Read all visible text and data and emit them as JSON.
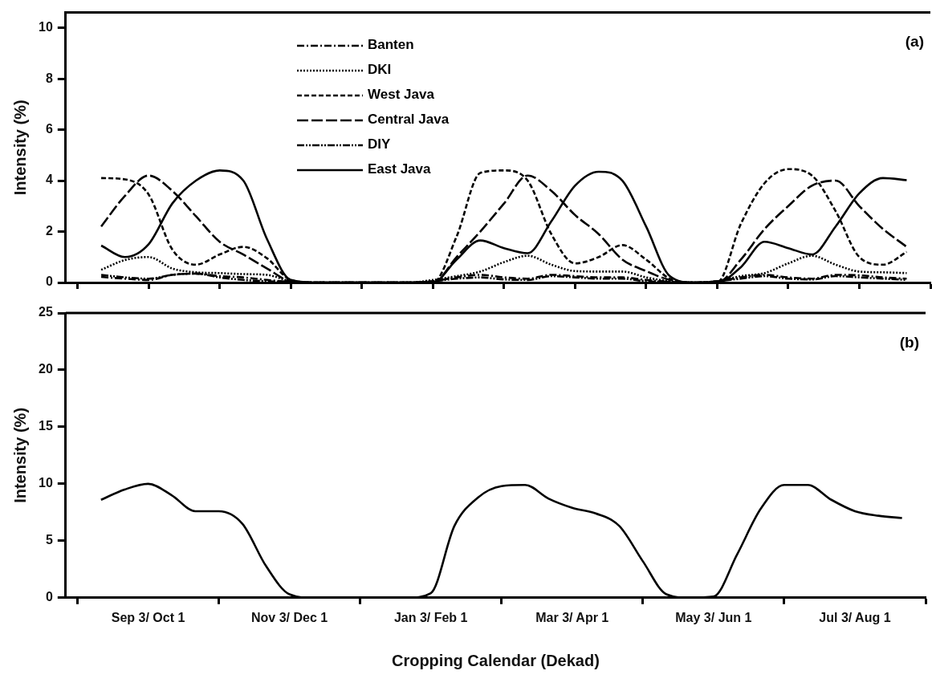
{
  "chart_data": [
    {
      "type": "line",
      "ylabel": "Intensity (%)",
      "annotations": [
        "(a)"
      ],
      "categories": [
        null,
        null,
        null,
        null,
        null,
        null,
        null,
        null,
        null,
        null,
        null,
        null,
        null,
        null,
        null,
        null,
        null,
        null,
        null,
        null,
        null,
        null,
        null,
        null,
        null,
        null,
        null,
        null,
        null,
        null,
        null,
        null,
        null,
        null,
        null,
        null,
        null
      ],
      "ylim": [
        0,
        10.6
      ],
      "yticks": [
        0,
        2,
        4,
        6,
        8,
        10
      ],
      "tick_labels": "y",
      "grid": false,
      "legend": "top",
      "marker": "none",
      "series": [
        {
          "name": "Banten",
          "color": "#000000",
          "line_style": "dashdot",
          "values": [
            null,
            0.22,
            0.15,
            0.1,
            0.3,
            0.35,
            0.25,
            0.2,
            0.1,
            0.02,
            0,
            0,
            0,
            0,
            0,
            0.05,
            0.2,
            0.3,
            0.2,
            0.15,
            0.3,
            0.25,
            0.2,
            0.2,
            0.1,
            0.03,
            0,
            0.05,
            0.2,
            0.3,
            0.2,
            0.15,
            0.3,
            0.28,
            0.2,
            0.15,
            null
          ]
        },
        {
          "name": "DKI",
          "color": "#000000",
          "line_style": "dotted",
          "values": [
            null,
            0.5,
            0.88,
            1.0,
            0.55,
            0.4,
            0.37,
            0.33,
            0.3,
            0.05,
            0,
            0,
            0,
            0,
            0,
            0.1,
            0.25,
            0.43,
            0.8,
            1.05,
            0.7,
            0.45,
            0.43,
            0.43,
            0.2,
            0.05,
            0,
            0.05,
            0.25,
            0.37,
            0.75,
            1.05,
            0.7,
            0.43,
            0.4,
            0.37,
            null
          ]
        },
        {
          "name": "West Java",
          "color": "#000000",
          "line_style": "dashed",
          "values": [
            null,
            4.1,
            4.05,
            3.46,
            1.3,
            0.7,
            1.1,
            1.4,
            0.95,
            0.1,
            0,
            0,
            0,
            0,
            0,
            0,
            1.8,
            4.3,
            4.4,
            4.0,
            1.9,
            0.75,
            1.0,
            1.47,
            0.9,
            0.15,
            0,
            0,
            2.3,
            3.9,
            4.45,
            4.2,
            2.8,
            1.0,
            0.7,
            1.2,
            null
          ]
        },
        {
          "name": "Central Java",
          "color": "#000000",
          "line_style": "longdash",
          "values": [
            null,
            2.2,
            3.4,
            4.2,
            3.6,
            2.6,
            1.6,
            1.1,
            0.55,
            0.05,
            0,
            0,
            0,
            0,
            0,
            0,
            1.0,
            2.0,
            3.1,
            4.2,
            3.6,
            2.65,
            1.9,
            0.9,
            0.45,
            0.1,
            0,
            0,
            0.9,
            2.1,
            3.0,
            3.8,
            4.0,
            3.0,
            2.1,
            1.4,
            null
          ]
        },
        {
          "name": "DIY",
          "color": "#000000",
          "line_style": "dashdotdot",
          "values": [
            null,
            0.3,
            0.2,
            0.15,
            0.3,
            0.35,
            0.2,
            0.1,
            0.05,
            0.02,
            0,
            0,
            0,
            0,
            0,
            0.05,
            0.15,
            0.2,
            0.12,
            0.1,
            0.25,
            0.2,
            0.15,
            0.15,
            0.05,
            0.02,
            0,
            0.05,
            0.15,
            0.25,
            0.15,
            0.12,
            0.25,
            0.2,
            0.15,
            0.1,
            null
          ]
        },
        {
          "name": "East Java",
          "color": "#000000",
          "line_style": "solid",
          "values": [
            null,
            1.45,
            1.0,
            1.5,
            3.1,
            4.0,
            4.4,
            4.0,
            1.7,
            0.1,
            0,
            0,
            0,
            0,
            0,
            0,
            0.9,
            1.65,
            1.35,
            1.15,
            2.4,
            3.8,
            4.35,
            4.0,
            2.2,
            0.25,
            0,
            0,
            0.6,
            1.6,
            1.35,
            1.1,
            2.2,
            3.5,
            4.1,
            4.02,
            null
          ]
        }
      ]
    },
    {
      "type": "line",
      "ylabel": "Intensity (%)",
      "xlabel": "Cropping Calendar (Dekad)",
      "annotations": [
        "(b)"
      ],
      "categories": [
        null,
        null,
        null,
        "Sep 3/ Oct 1",
        null,
        null,
        null,
        null,
        null,
        "Nov 3/ Dec 1",
        null,
        null,
        null,
        null,
        null,
        "Jan 3/ Feb 1",
        null,
        null,
        null,
        null,
        null,
        "Mar 3/ Apr 1",
        null,
        null,
        null,
        null,
        null,
        "May 3/ Jun 1",
        null,
        null,
        null,
        null,
        null,
        "Jul 3/ Aug 1",
        null,
        null,
        null
      ],
      "ylim": [
        0,
        25
      ],
      "yticks": [
        0,
        5,
        10,
        15,
        20,
        25
      ],
      "grid": false,
      "legend": false,
      "marker": "none",
      "series": [
        {
          "color": "#000000",
          "line_style": "solid",
          "values": [
            null,
            8.6,
            9.5,
            10.0,
            9.0,
            7.6,
            7.6,
            6.5,
            2.8,
            0.3,
            0,
            0,
            0,
            0,
            0,
            0.4,
            6.3,
            8.8,
            9.8,
            9.9,
            8.7,
            7.9,
            7.4,
            6.3,
            3.2,
            0.3,
            0,
            0.1,
            3.8,
            7.8,
            9.9,
            9.9,
            8.6,
            7.6,
            7.2,
            7.0,
            null
          ]
        }
      ]
    }
  ]
}
